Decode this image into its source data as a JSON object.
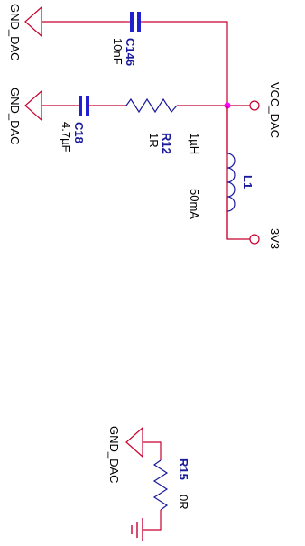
{
  "colors": {
    "wire": "#c8002e",
    "component": "#1a1a9c",
    "cap": "#2020d0",
    "junction": "#ff00ff",
    "pin": "#c8002e",
    "ground": "#c8002e",
    "text": "#000000",
    "reference": "#1a1a9c"
  },
  "components": {
    "c146": {
      "ref": "C146",
      "value": "10nF"
    },
    "c18": {
      "ref": "C18",
      "value": "4.7µF"
    },
    "r12": {
      "ref": "R12",
      "value": "1R"
    },
    "l1": {
      "ref": "L1",
      "value": "1µH",
      "rating": "50mA"
    },
    "r15": {
      "ref": "R15",
      "value": "0R"
    }
  },
  "nets": {
    "gnd_dac_1": "GND_DAC",
    "gnd_dac_2": "GND_DAC",
    "gnd_dac_3": "GND_DAC",
    "vcc_dac": "VCC_DAC",
    "v3v3": "3V3"
  }
}
